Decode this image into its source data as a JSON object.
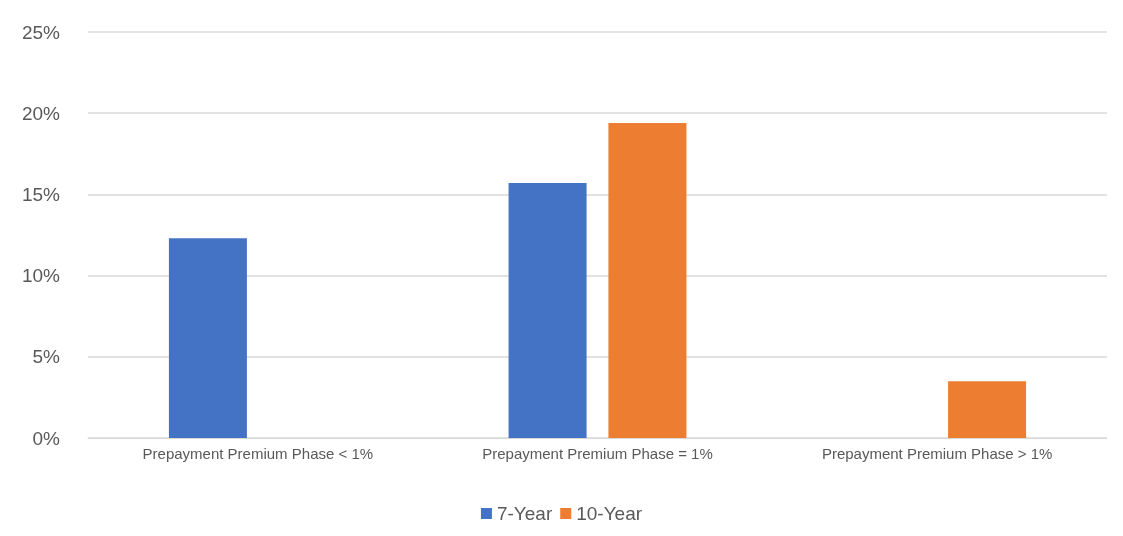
{
  "chart_data": {
    "type": "bar",
    "categories": [
      "Prepayment Premium Phase < 1%",
      "Prepayment Premium Phase = 1%",
      "Prepayment Premium Phase > 1%"
    ],
    "series": [
      {
        "name": "7-Year",
        "color": "#4472c4",
        "values": [
          12.3,
          15.7,
          null
        ]
      },
      {
        "name": "10-Year",
        "color": "#ed7d31",
        "values": [
          null,
          19.4,
          3.5
        ]
      }
    ],
    "ylim": [
      0,
      25
    ],
    "yticks": [
      {
        "value": 0,
        "label": "0%"
      },
      {
        "value": 5,
        "label": "5%"
      },
      {
        "value": 10,
        "label": "10%"
      },
      {
        "value": 15,
        "label": "15%"
      },
      {
        "value": 20,
        "label": "20%"
      },
      {
        "value": 25,
        "label": "25%"
      }
    ],
    "grid": "y",
    "legend": "bottom"
  }
}
